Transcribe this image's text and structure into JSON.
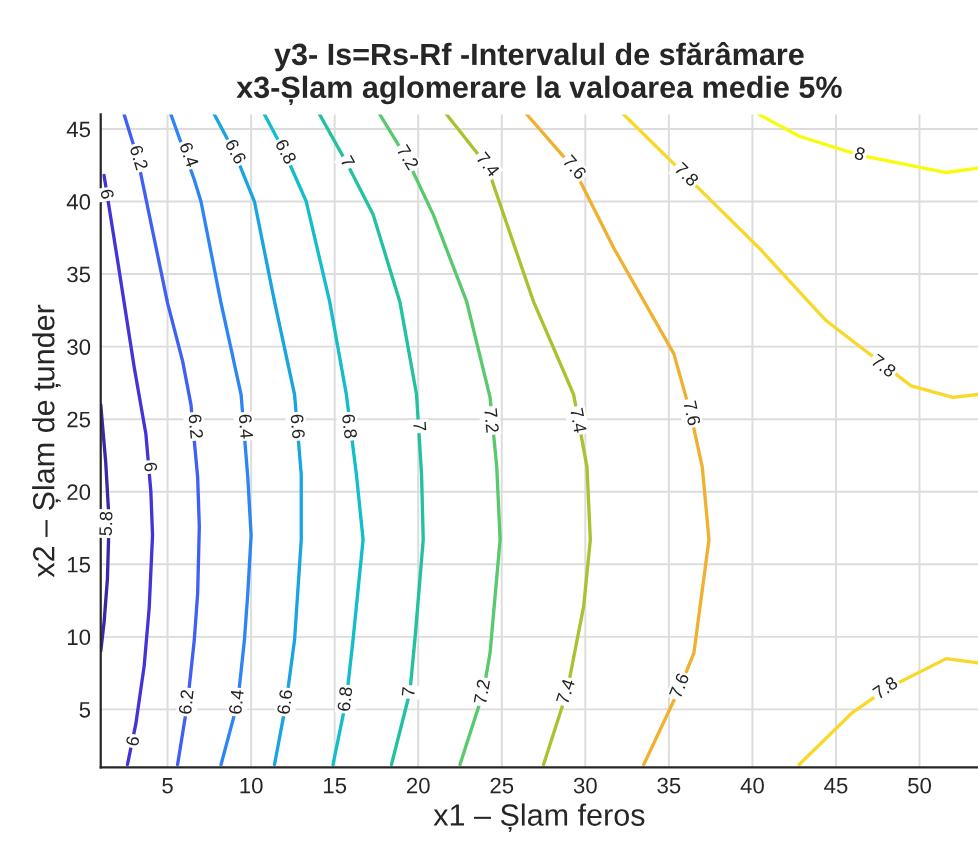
{
  "chart_data": {
    "type": "line",
    "title": "y3- Is=Rs-Rf -Intervalul de sfărâmare\nx3-Șlam aglomerare la valoarea medie 5%",
    "xlabel": "x1 – Șlam feros",
    "ylabel": "x2 – Șlam de țunder",
    "xlim": [
      1,
      53.5
    ],
    "ylim": [
      1,
      46
    ],
    "xticks": [
      5,
      10,
      15,
      20,
      25,
      30,
      35,
      40,
      45,
      50
    ],
    "yticks": [
      5,
      10,
      15,
      20,
      25,
      30,
      35,
      40,
      45
    ],
    "grid": true,
    "legend": false,
    "series": [
      {
        "color": "#3d26a8",
        "x": [
          1.0,
          1.3,
          1.5,
          1.4,
          1.2,
          1.0
        ],
        "values": [
          26,
          22,
          18,
          14,
          11,
          9
        ]
      },
      {
        "color": "#4433d6",
        "x": [
          1.2,
          2.0,
          3.0,
          3.7,
          4.0,
          4.1,
          3.9,
          3.6,
          3.1,
          2.6
        ],
        "values": [
          41.8,
          36,
          28.6,
          24,
          20,
          17,
          12,
          8,
          4,
          1.2
        ]
      },
      {
        "color": "#3f5ff5",
        "x": [
          2.4,
          3.2,
          4.1,
          5.0,
          5.9,
          6.4,
          6.8,
          6.9,
          6.8,
          6.6,
          6.2,
          5.6
        ],
        "values": [
          46,
          43,
          38,
          33,
          29,
          26,
          21,
          17.6,
          13,
          9.8,
          5.5,
          1.2
        ]
      },
      {
        "color": "#2d85f5",
        "x": [
          5.2,
          6.6,
          7.0,
          8.2,
          9.4,
          9.8,
          10.0,
          9.8,
          9.6,
          9.2,
          8.2
        ],
        "values": [
          46,
          41.5,
          40,
          33,
          26.7,
          21,
          17,
          13,
          9.8,
          5.5,
          1.2
        ]
      },
      {
        "color": "#1aa5e0",
        "x": [
          7.8,
          9.0,
          10.2,
          11.4,
          12.6,
          13.0,
          13.0,
          12.6,
          12.1,
          11.4
        ],
        "values": [
          46,
          43.4,
          40,
          33.1,
          26.7,
          21.2,
          16.7,
          9.8,
          5.5,
          1.2
        ]
      },
      {
        "color": "#13bdc9",
        "x": [
          10.8,
          12.0,
          13.3,
          14.7,
          15.7,
          16.3,
          16.7,
          16.1,
          15.7,
          14.9
        ],
        "values": [
          46,
          43.4,
          40,
          33.1,
          26.7,
          21.2,
          16.7,
          9.8,
          5.7,
          1.2
        ]
      },
      {
        "color": "#22c1a0",
        "x": [
          14.1,
          15.7,
          17.3,
          18.9,
          19.9,
          20.2,
          20.3,
          19.8,
          19.5,
          18.4
        ],
        "values": [
          46,
          42.7,
          39.1,
          33.1,
          26.7,
          21.2,
          16.7,
          9.8,
          6.2,
          1.2
        ]
      },
      {
        "color": "#58c96d",
        "x": [
          17.7,
          19.3,
          20.9,
          22.9,
          24.3,
          24.7,
          24.9,
          24.3,
          23.9,
          22.5
        ],
        "values": [
          46,
          43,
          39.1,
          33.1,
          26.5,
          21.7,
          16.7,
          8.9,
          6.2,
          1.2
        ]
      },
      {
        "color": "#a8c230",
        "x": [
          21.7,
          24.1,
          26.9,
          29.3,
          30.1,
          30.3,
          29.9,
          28.9,
          27.5
        ],
        "values": [
          46,
          42.5,
          33.1,
          26.7,
          21.7,
          16.7,
          12.1,
          6.2,
          1.2
        ]
      },
      {
        "color": "#f0b030",
        "x": [
          26.5,
          29.3,
          31.7,
          35.3,
          36.3,
          37.0,
          37.4,
          36.5,
          35.7,
          33.5
        ],
        "values": [
          46,
          42.3,
          36.8,
          29.5,
          25.4,
          21.7,
          16.7,
          8.9,
          6.6,
          1.2
        ]
      },
      {
        "color": "#f8d82a",
        "x": [
          32.3,
          36.0,
          40.4,
          44.4,
          49.5,
          52.0,
          53.5
        ],
        "values": [
          46,
          41.8,
          36.8,
          31.8,
          27.3,
          26.5,
          26.7
        ]
      },
      {
        "color": "#f8d82a",
        "x": [
          42.8,
          46.0,
          48.0,
          51.6,
          53.5
        ],
        "values": [
          1.2,
          4.8,
          6.4,
          8.5,
          8.2
        ]
      },
      {
        "color": "#f9fb0e",
        "x": [
          40.4,
          42.8,
          46.4,
          51.6,
          53.5
        ],
        "values": [
          46,
          44.5,
          43.2,
          42,
          42.3
        ]
      }
    ],
    "annotations": [
      {
        "text": "5.8",
        "x": 1.4,
        "y": 17.8
      },
      {
        "text": "6",
        "x": 1.3,
        "y": 40.5
      },
      {
        "text": "6",
        "x": 3.9,
        "y": 21.7
      },
      {
        "text": "6",
        "x": 3.0,
        "y": 2.8
      },
      {
        "text": "6.2",
        "x": 3.2,
        "y": 43
      },
      {
        "text": "6.2",
        "x": 6.6,
        "y": 24.5
      },
      {
        "text": "6.2",
        "x": 6.2,
        "y": 5.5
      },
      {
        "text": "6.4",
        "x": 6.2,
        "y": 43.2
      },
      {
        "text": "6.4",
        "x": 9.6,
        "y": 24.5
      },
      {
        "text": "6.4",
        "x": 9.2,
        "y": 5.5
      },
      {
        "text": "6.6",
        "x": 9.0,
        "y": 43.4
      },
      {
        "text": "6.6",
        "x": 12.7,
        "y": 24.5
      },
      {
        "text": "6.6",
        "x": 12.1,
        "y": 5.5
      },
      {
        "text": "6.8",
        "x": 12.0,
        "y": 43.4
      },
      {
        "text": "6.8",
        "x": 15.8,
        "y": 24.5
      },
      {
        "text": "6.8",
        "x": 15.7,
        "y": 5.7
      },
      {
        "text": "7",
        "x": 15.7,
        "y": 42.7
      },
      {
        "text": "7",
        "x": 20.0,
        "y": 24.5
      },
      {
        "text": "7",
        "x": 19.5,
        "y": 6.2
      },
      {
        "text": "7.2",
        "x": 19.3,
        "y": 43
      },
      {
        "text": "7.2",
        "x": 24.3,
        "y": 24.9
      },
      {
        "text": "7.2",
        "x": 23.9,
        "y": 6.2
      },
      {
        "text": "7.4",
        "x": 24.1,
        "y": 42.5
      },
      {
        "text": "7.4",
        "x": 29.5,
        "y": 24.9
      },
      {
        "text": "7.4",
        "x": 28.9,
        "y": 6.2
      },
      {
        "text": "7.6",
        "x": 29.3,
        "y": 42.3
      },
      {
        "text": "7.6",
        "x": 36.3,
        "y": 25.4
      },
      {
        "text": "7.6",
        "x": 35.7,
        "y": 6.6
      },
      {
        "text": "7.8",
        "x": 36.0,
        "y": 41.8
      },
      {
        "text": "7.8",
        "x": 47.8,
        "y": 28.6
      },
      {
        "text": "7.8",
        "x": 48.0,
        "y": 6.4
      },
      {
        "text": "8",
        "x": 46.4,
        "y": 43.2
      }
    ]
  }
}
